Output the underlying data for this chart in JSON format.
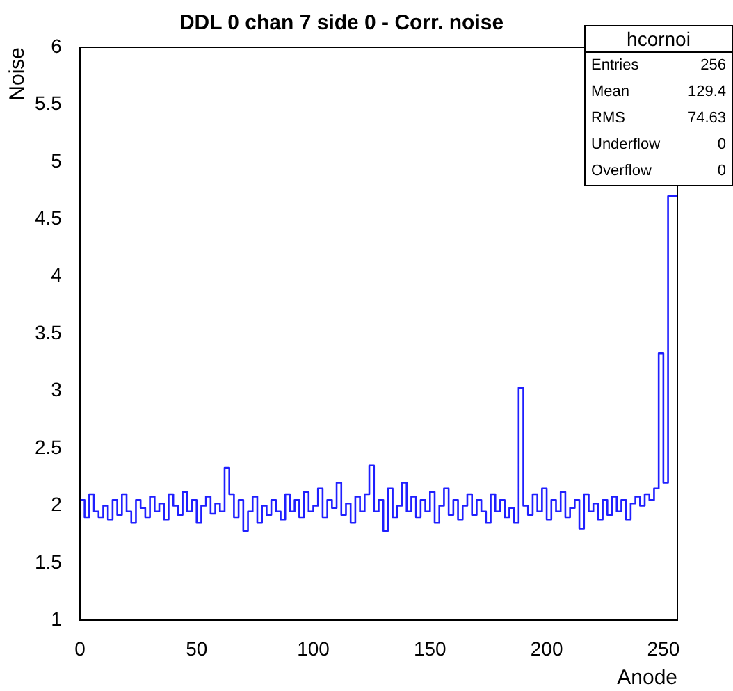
{
  "chart_data": {
    "type": "step",
    "title": "DDL 0 chan 7 side 0 - Corr. noise",
    "xlabel": "Anode",
    "ylabel": "Noise",
    "annotations": [
      "hcornoi",
      "Entries",
      "256",
      "Mean",
      "129.4",
      "RMS",
      "74.63",
      "Underflow",
      "0",
      "Overflow",
      "0"
    ],
    "x": [
      0,
      2,
      4,
      6,
      8,
      10,
      12,
      14,
      16,
      18,
      20,
      22,
      24,
      26,
      28,
      30,
      32,
      34,
      36,
      38,
      40,
      42,
      44,
      46,
      48,
      50,
      52,
      54,
      56,
      58,
      60,
      62,
      64,
      66,
      68,
      70,
      72,
      74,
      76,
      78,
      80,
      82,
      84,
      86,
      88,
      90,
      92,
      94,
      96,
      98,
      100,
      102,
      104,
      106,
      108,
      110,
      112,
      114,
      116,
      118,
      120,
      122,
      124,
      126,
      128,
      130,
      132,
      134,
      136,
      138,
      140,
      142,
      144,
      146,
      148,
      150,
      152,
      154,
      156,
      158,
      160,
      162,
      164,
      166,
      168,
      170,
      172,
      174,
      176,
      178,
      180,
      182,
      184,
      186,
      188,
      190,
      192,
      194,
      196,
      198,
      200,
      202,
      204,
      206,
      208,
      210,
      212,
      214,
      216,
      218,
      220,
      222,
      224,
      226,
      228,
      230,
      232,
      234,
      236,
      238,
      240,
      242,
      244,
      246,
      248,
      250,
      252,
      254,
      256
    ],
    "series": [
      {
        "color": "#1f1fff",
        "values": [
          1.95,
          2.05,
          1.9,
          2.1,
          1.95,
          1.9,
          2.0,
          1.88,
          2.05,
          1.92,
          2.1,
          1.95,
          1.85,
          2.05,
          1.98,
          1.9,
          2.08,
          1.95,
          2.02,
          1.88,
          2.1,
          2.0,
          1.92,
          2.12,
          1.95,
          2.05,
          1.85,
          2.0,
          2.08,
          1.93,
          2.02,
          1.95,
          2.33,
          2.1,
          1.9,
          2.05,
          1.78,
          1.95,
          2.08,
          1.85,
          2.0,
          1.92,
          2.05,
          1.95,
          1.88,
          2.1,
          1.95,
          2.05,
          1.9,
          2.12,
          1.95,
          2.0,
          2.15,
          1.9,
          2.05,
          1.98,
          2.2,
          1.92,
          2.02,
          1.85,
          2.08,
          1.95,
          2.1,
          2.35,
          1.95,
          2.05,
          1.78,
          2.15,
          1.9,
          2.0,
          2.2,
          1.95,
          2.08,
          1.9,
          2.05,
          1.95,
          2.12,
          1.85,
          2.0,
          2.15,
          1.92,
          2.05,
          1.88,
          2.0,
          2.1,
          1.92,
          2.05,
          1.95,
          1.85,
          2.1,
          1.95,
          2.05,
          1.9,
          1.98,
          1.85,
          3.03,
          2.0,
          1.92,
          2.1,
          1.95,
          2.15,
          1.88,
          2.05,
          1.95,
          2.12,
          1.9,
          1.98,
          2.05,
          1.8,
          2.1,
          1.95,
          2.02,
          1.88,
          2.05,
          1.92,
          2.08,
          1.95,
          2.05,
          1.88,
          2.02,
          2.08,
          2.0,
          2.1,
          2.05,
          2.15,
          3.33,
          2.2,
          4.7,
          4.7
        ]
      }
    ],
    "xlim": [
      0,
      256
    ],
    "ylim": [
      1,
      6
    ],
    "xticks": [
      0,
      50,
      100,
      150,
      200,
      250
    ],
    "yticks": [
      1,
      1.5,
      2,
      2.5,
      3,
      3.5,
      4,
      4.5,
      5,
      5.5,
      6
    ],
    "grid": false,
    "legend": false
  }
}
